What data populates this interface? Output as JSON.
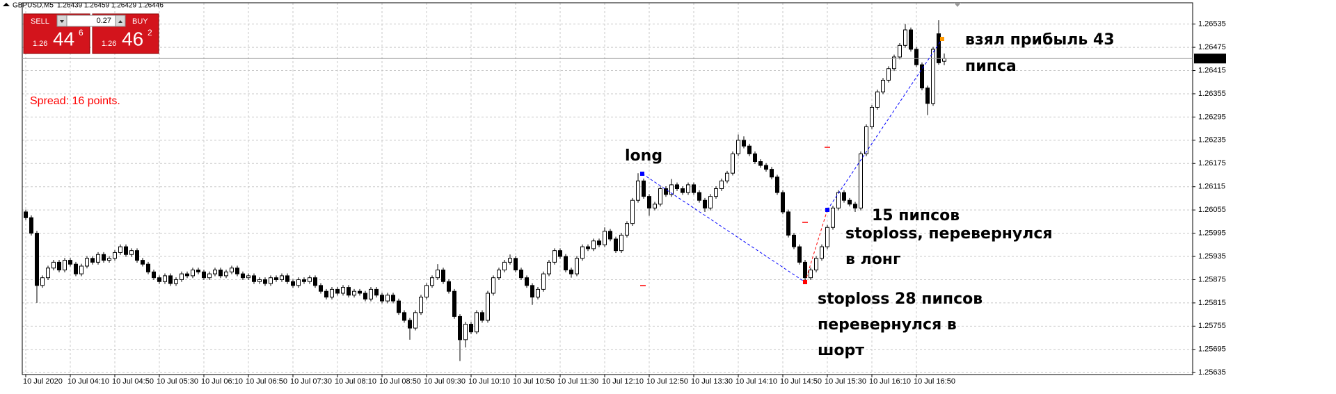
{
  "chart_data": {
    "type": "candlestick",
    "title": "GBPUSD,M5",
    "header_values": "1.26439 1.26459 1.26429 1.26446",
    "categories": [
      "10 Jul 2020",
      null,
      null,
      null,
      null,
      null,
      null,
      null,
      "10 Jul 04:10",
      null,
      null,
      null,
      null,
      null,
      null,
      null,
      "10 Jul 04:50",
      null,
      null,
      null,
      null,
      null,
      null,
      null,
      "10 Jul 05:30",
      null,
      null,
      null,
      null,
      null,
      null,
      null,
      "10 Jul 06:10",
      null,
      null,
      null,
      null,
      null,
      null,
      null,
      "10 Jul 06:50",
      null,
      null,
      null,
      null,
      null,
      null,
      null,
      "10 Jul 07:30",
      null,
      null,
      null,
      null,
      null,
      null,
      null,
      "10 Jul 08:10",
      null,
      null,
      null,
      null,
      null,
      null,
      null,
      "10 Jul 08:50",
      null,
      null,
      null,
      null,
      null,
      null,
      null,
      "10 Jul 09:30",
      null,
      null,
      null,
      null,
      null,
      null,
      null,
      "10 Jul 10:10",
      null,
      null,
      null,
      null,
      null,
      null,
      null,
      "10 Jul 10:50",
      null,
      null,
      null,
      null,
      null,
      null,
      null,
      "10 Jul 11:30",
      null,
      null,
      null,
      null,
      null,
      null,
      null,
      "10 Jul 12:10",
      null,
      null,
      null,
      null,
      null,
      null,
      null,
      "10 Jul 12:50",
      null,
      null,
      null,
      null,
      null,
      null,
      null,
      "10 Jul 13:30",
      null,
      null,
      null,
      null,
      null,
      null,
      null,
      "10 Jul 14:10",
      null,
      null,
      null,
      null,
      null,
      null,
      null,
      "10 Jul 14:50",
      null,
      null,
      null,
      null,
      null,
      null,
      null,
      "10 Jul 15:30",
      null,
      null,
      null,
      null,
      null,
      null,
      null,
      "10 Jul 16:10",
      null,
      null,
      null,
      null,
      null,
      null,
      null,
      "10 Jul 16:50",
      null,
      null,
      null,
      null,
      null
    ],
    "open": [
      1.2605,
      1.26035,
      1.25995,
      1.2586,
      1.2588,
      1.25905,
      1.2592,
      1.259,
      1.25925,
      1.25915,
      1.2589,
      1.2591,
      1.2593,
      1.2592,
      1.2594,
      1.25925,
      1.2593,
      1.25945,
      1.2596,
      1.2594,
      1.2595,
      1.25925,
      1.25915,
      1.25895,
      1.2588,
      1.2587,
      1.25885,
      1.25865,
      1.25875,
      1.2589,
      1.25885,
      1.259,
      1.25895,
      1.2588,
      1.2589,
      1.259,
      1.25885,
      1.25895,
      1.25905,
      1.2589,
      1.2588,
      1.25885,
      1.2587,
      1.25875,
      1.25865,
      1.2588,
      1.25875,
      1.25885,
      1.2587,
      1.2586,
      1.25875,
      1.2587,
      1.2588,
      1.2586,
      1.25845,
      1.2583,
      1.2585,
      1.2584,
      1.25855,
      1.25835,
      1.25845,
      1.2584,
      1.25825,
      1.2585,
      1.25835,
      1.2582,
      1.25835,
      1.2582,
      1.2579,
      1.2577,
      1.2575,
      1.2579,
      1.2583,
      1.2586,
      1.2588,
      1.259,
      1.2587,
      1.25845,
      1.2578,
      1.2572,
      1.2576,
      1.2574,
      1.2579,
      1.2577,
      1.2584,
      1.2588,
      1.259,
      1.2592,
      1.2593,
      1.259,
      1.2588,
      1.2586,
      1.2583,
      1.2585,
      1.2589,
      1.2592,
      1.2595,
      1.25935,
      1.259,
      1.2589,
      1.2593,
      1.2596,
      1.25955,
      1.25975,
      1.25965,
      1.26,
      1.2598,
      1.2595,
      1.2599,
      1.2602,
      1.2608,
      1.2613,
      1.2609,
      1.2606,
      1.2607,
      1.2611,
      1.26095,
      1.2612,
      1.2611,
      1.261,
      1.2612,
      1.261,
      1.2608,
      1.2606,
      1.2609,
      1.2611,
      1.2613,
      1.2615,
      1.262,
      1.26235,
      1.2622,
      1.262,
      1.2618,
      1.2617,
      1.2616,
      1.2614,
      1.261,
      1.2605,
      1.2599,
      1.2596,
      1.2592,
      1.2588,
      1.259,
      1.2593,
      1.2596,
      1.2601,
      1.2606,
      1.261,
      1.2608,
      1.2607,
      1.2606,
      1.262,
      1.2627,
      1.2632,
      1.2636,
      1.2639,
      1.2642,
      1.2645,
      1.2648,
      1.2652,
      1.2647,
      1.2643,
      1.2637,
      1.2633,
      1.2651,
      1.26439
    ],
    "high": [
      1.26056,
      1.26041,
      1.26001,
      1.25886,
      1.25911,
      1.25926,
      1.25926,
      1.25931,
      1.25931,
      1.25921,
      1.25916,
      1.25936,
      1.25936,
      1.25946,
      1.25946,
      1.25936,
      1.25951,
      1.25966,
      1.25966,
      1.25956,
      1.25956,
      1.25931,
      1.25921,
      1.25901,
      1.25886,
      1.25891,
      1.25891,
      1.25881,
      1.25896,
      1.25896,
      1.25906,
      1.25906,
      1.25901,
      1.25896,
      1.25906,
      1.25906,
      1.25901,
      1.25911,
      1.25911,
      1.25896,
      1.25891,
      1.25891,
      1.25881,
      1.25881,
      1.25886,
      1.25886,
      1.25891,
      1.25891,
      1.25876,
      1.25881,
      1.25881,
      1.25886,
      1.25886,
      1.25866,
      1.25851,
      1.25856,
      1.25856,
      1.25861,
      1.25861,
      1.25851,
      1.25851,
      1.25846,
      1.25856,
      1.25856,
      1.25841,
      1.25841,
      1.25841,
      1.25826,
      1.25796,
      1.25776,
      1.25796,
      1.25836,
      1.25866,
      1.25886,
      1.25915,
      1.25906,
      1.25876,
      1.25851,
      1.25786,
      1.25766,
      1.25766,
      1.25796,
      1.25796,
      1.25846,
      1.25886,
      1.25906,
      1.25926,
      1.2594,
      1.25936,
      1.25906,
      1.25886,
      1.25866,
      1.25856,
      1.25896,
      1.25926,
      1.25956,
      1.25956,
      1.25941,
      1.25906,
      1.25936,
      1.25966,
      1.25966,
      1.25981,
      1.25981,
      1.2601,
      1.26006,
      1.25986,
      1.25996,
      1.26026,
      1.26086,
      1.2615,
      1.26136,
      1.26096,
      1.26076,
      1.26116,
      1.26116,
      1.26135,
      1.26126,
      1.26116,
      1.26126,
      1.26126,
      1.26106,
      1.26086,
      1.26096,
      1.26116,
      1.26136,
      1.26156,
      1.26206,
      1.2625,
      1.26245,
      1.26226,
      1.26206,
      1.26186,
      1.26176,
      1.26166,
      1.26146,
      1.26106,
      1.26056,
      1.25996,
      1.25966,
      1.25926,
      1.25906,
      1.25936,
      1.25966,
      1.26016,
      1.26066,
      1.26106,
      1.26106,
      1.26086,
      1.26076,
      1.26206,
      1.26276,
      1.26326,
      1.26366,
      1.26396,
      1.26426,
      1.26456,
      1.26486,
      1.26535,
      1.26526,
      1.26476,
      1.26436,
      1.26376,
      1.26476,
      1.26545,
      1.26459
    ],
    "low": [
      1.26029,
      1.25989,
      1.25815,
      1.25854,
      1.25874,
      1.25899,
      1.25894,
      1.25894,
      1.25909,
      1.25884,
      1.25884,
      1.25904,
      1.25914,
      1.25914,
      1.25919,
      1.25919,
      1.25924,
      1.25939,
      1.25934,
      1.25934,
      1.25919,
      1.25909,
      1.25889,
      1.25874,
      1.25864,
      1.25864,
      1.25859,
      1.25859,
      1.25869,
      1.25879,
      1.25879,
      1.25889,
      1.25874,
      1.25874,
      1.25884,
      1.25879,
      1.25879,
      1.25889,
      1.25884,
      1.25874,
      1.25874,
      1.25864,
      1.25864,
      1.25859,
      1.25859,
      1.25869,
      1.25869,
      1.25864,
      1.25854,
      1.25854,
      1.25864,
      1.25864,
      1.25854,
      1.25839,
      1.25824,
      1.25824,
      1.25834,
      1.25834,
      1.25829,
      1.25829,
      1.25834,
      1.25819,
      1.25819,
      1.25829,
      1.25814,
      1.25814,
      1.25814,
      1.25784,
      1.25764,
      1.2572,
      1.25744,
      1.25784,
      1.25824,
      1.25854,
      1.25874,
      1.25864,
      1.25839,
      1.25774,
      1.25665,
      1.257,
      1.25734,
      1.25734,
      1.25764,
      1.25764,
      1.25834,
      1.25874,
      1.25894,
      1.25914,
      1.25894,
      1.25874,
      1.25854,
      1.2581,
      1.25824,
      1.25844,
      1.25884,
      1.25914,
      1.25929,
      1.25894,
      1.2588,
      1.25884,
      1.25924,
      1.25949,
      1.25949,
      1.25959,
      1.25959,
      1.25974,
      1.25944,
      1.25944,
      1.25984,
      1.26014,
      1.26074,
      1.26084,
      1.2604,
      1.26054,
      1.26064,
      1.26089,
      1.26089,
      1.26104,
      1.26094,
      1.26094,
      1.26094,
      1.26074,
      1.2605,
      1.26054,
      1.26084,
      1.26104,
      1.26124,
      1.26144,
      1.26194,
      1.26214,
      1.26194,
      1.26174,
      1.26164,
      1.26154,
      1.26134,
      1.26094,
      1.26044,
      1.25984,
      1.25954,
      1.25914,
      1.25865,
      1.25874,
      1.25894,
      1.25924,
      1.25954,
      1.26004,
      1.26054,
      1.26074,
      1.26064,
      1.2605,
      1.26054,
      1.26194,
      1.26264,
      1.26314,
      1.26354,
      1.26384,
      1.26414,
      1.26444,
      1.26474,
      1.26464,
      1.26424,
      1.26364,
      1.263,
      1.26324,
      1.2643,
      1.26429
    ],
    "close": [
      1.26035,
      1.25995,
      1.2586,
      1.2588,
      1.25905,
      1.2592,
      1.259,
      1.25925,
      1.25915,
      1.2589,
      1.2591,
      1.2593,
      1.2592,
      1.2594,
      1.25925,
      1.2593,
      1.25945,
      1.2596,
      1.2594,
      1.2595,
      1.25925,
      1.25915,
      1.25895,
      1.2588,
      1.2587,
      1.25885,
      1.25865,
      1.25875,
      1.2589,
      1.25885,
      1.259,
      1.25895,
      1.2588,
      1.2589,
      1.259,
      1.25885,
      1.25895,
      1.25905,
      1.2589,
      1.2588,
      1.25885,
      1.2587,
      1.25875,
      1.25865,
      1.2588,
      1.25875,
      1.25885,
      1.2587,
      1.2586,
      1.25875,
      1.2587,
      1.2588,
      1.2586,
      1.25845,
      1.2583,
      1.2585,
      1.2584,
      1.25855,
      1.25835,
      1.25845,
      1.2584,
      1.25825,
      1.2585,
      1.25835,
      1.2582,
      1.25835,
      1.2582,
      1.2579,
      1.2577,
      1.2575,
      1.2579,
      1.2583,
      1.2586,
      1.2588,
      1.259,
      1.2587,
      1.25845,
      1.2578,
      1.2572,
      1.2576,
      1.2574,
      1.2579,
      1.2577,
      1.2584,
      1.2588,
      1.259,
      1.2592,
      1.2593,
      1.259,
      1.2588,
      1.2586,
      1.2583,
      1.2585,
      1.2589,
      1.2592,
      1.2595,
      1.25935,
      1.259,
      1.2589,
      1.2593,
      1.2596,
      1.25955,
      1.25975,
      1.25965,
      1.26,
      1.2598,
      1.2595,
      1.2599,
      1.2602,
      1.2608,
      1.2613,
      1.2609,
      1.2606,
      1.2607,
      1.2611,
      1.26095,
      1.2612,
      1.2611,
      1.261,
      1.2612,
      1.261,
      1.2608,
      1.2606,
      1.2609,
      1.2611,
      1.2613,
      1.2615,
      1.262,
      1.26235,
      1.2622,
      1.262,
      1.2618,
      1.2617,
      1.2616,
      1.2614,
      1.261,
      1.2605,
      1.2599,
      1.2596,
      1.2592,
      1.2588,
      1.259,
      1.2593,
      1.2596,
      1.2601,
      1.2606,
      1.261,
      1.2608,
      1.2607,
      1.2606,
      1.262,
      1.2627,
      1.2632,
      1.2636,
      1.2639,
      1.2642,
      1.2645,
      1.2648,
      1.2652,
      1.2647,
      1.2643,
      1.2637,
      1.2633,
      1.2647,
      1.26435,
      1.26446
    ],
    "up_color": "#ffffff",
    "down_color": "#000000",
    "wick_color": "#000000",
    "ylim": [
      1.2563,
      1.2659
    ],
    "yticks": [
      1.26535,
      1.26475,
      1.26415,
      1.26355,
      1.26295,
      1.26235,
      1.26175,
      1.26115,
      1.26055,
      1.25995,
      1.25935,
      1.25875,
      1.25815,
      1.25755,
      1.25695,
      1.25635
    ],
    "current_price": 1.26446,
    "grid": true,
    "annotations": [
      "long",
      "взял прибыль 43",
      "пипса",
      "15 пипсов",
      "stoploss, перевернулся",
      "в лонг",
      "stoploss 28 пипсов",
      "перевернулся в",
      "шорт"
    ]
  },
  "trade_panel": {
    "sell_label": "SELL",
    "buy_label": "BUY",
    "lot": "0.27",
    "sell_price": {
      "prefix": "1.26",
      "pips": "44",
      "point": "6"
    },
    "buy_price": {
      "prefix": "1.26",
      "pips": "46",
      "point": "2"
    }
  },
  "spread": "Spread: 16 points."
}
